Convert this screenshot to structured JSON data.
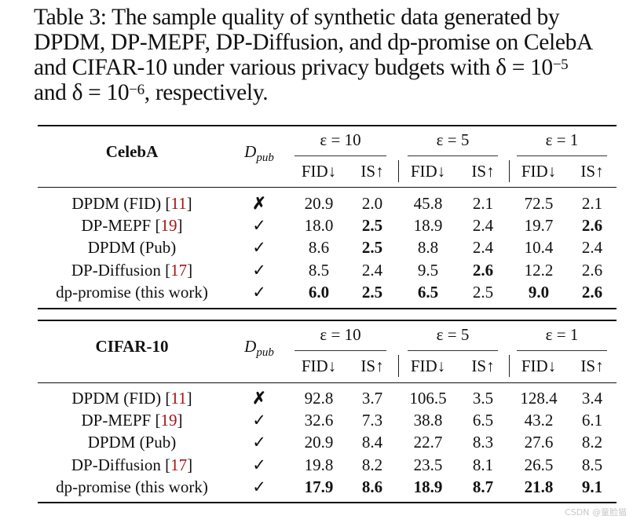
{
  "caption": {
    "line1": "Table 3:  The sample quality of synthetic data generated by",
    "line2": "DPDM, DP-MEPF, DP-Diffusion, and dp-promise on CelebA",
    "line3_prefix": "and CIFAR-10 under various privacy budgets with δ = 10",
    "line3_sup": "−5",
    "line4_prefix": "and δ = 10",
    "line4_sup": "−6",
    "line4_suffix": ", respectively."
  },
  "columns": {
    "dpub_base": "D",
    "dpub_sub": "pub",
    "eps_groups": [
      "ε = 10",
      "ε = 5",
      "ε = 1"
    ],
    "fid": "FID↓",
    "is": "IS↑"
  },
  "tables": [
    {
      "dataset": "CelebA",
      "rows": [
        {
          "method": "DPDM (FID) [",
          "ref": "11",
          "close": "]",
          "dpub": "✗",
          "vals": [
            "20.9",
            "2.0",
            "45.8",
            "2.1",
            "72.5",
            "2.1"
          ],
          "bold": [
            false,
            false,
            false,
            false,
            false,
            false
          ]
        },
        {
          "method": "DP-MEPF [",
          "ref": "19",
          "close": "]",
          "dpub": "✓",
          "vals": [
            "18.0",
            "2.5",
            "18.9",
            "2.4",
            "19.7",
            "2.6"
          ],
          "bold": [
            false,
            true,
            false,
            false,
            false,
            true
          ]
        },
        {
          "method": "DPDM (Pub)",
          "ref": "",
          "close": "",
          "dpub": "✓",
          "vals": [
            "8.6",
            "2.5",
            "8.8",
            "2.4",
            "10.4",
            "2.4"
          ],
          "bold": [
            false,
            true,
            false,
            false,
            false,
            false
          ]
        },
        {
          "method": "DP-Diffusion [",
          "ref": "17",
          "close": "]",
          "dpub": "✓",
          "vals": [
            "8.5",
            "2.4",
            "9.5",
            "2.6",
            "12.2",
            "2.6"
          ],
          "bold": [
            false,
            false,
            false,
            true,
            false,
            false
          ]
        },
        {
          "method": "dp-promise (this work)",
          "ref": "",
          "close": "",
          "dpub": "✓",
          "vals": [
            "6.0",
            "2.5",
            "6.5",
            "2.5",
            "9.0",
            "2.6"
          ],
          "bold": [
            true,
            true,
            true,
            false,
            true,
            true
          ]
        }
      ]
    },
    {
      "dataset": "CIFAR-10",
      "rows": [
        {
          "method": "DPDM (FID) [",
          "ref": "11",
          "close": "]",
          "dpub": "✗",
          "vals": [
            "92.8",
            "3.7",
            "106.5",
            "3.5",
            "128.4",
            "3.4"
          ],
          "bold": [
            false,
            false,
            false,
            false,
            false,
            false
          ]
        },
        {
          "method": "DP-MEPF [",
          "ref": "19",
          "close": "]",
          "dpub": "✓",
          "vals": [
            "32.6",
            "7.3",
            "38.8",
            "6.5",
            "43.2",
            "6.1"
          ],
          "bold": [
            false,
            false,
            false,
            false,
            false,
            false
          ]
        },
        {
          "method": "DPDM (Pub)",
          "ref": "",
          "close": "",
          "dpub": "✓",
          "vals": [
            "20.9",
            "8.4",
            "22.7",
            "8.3",
            "27.6",
            "8.2"
          ],
          "bold": [
            false,
            false,
            false,
            false,
            false,
            false
          ]
        },
        {
          "method": "DP-Diffusion [",
          "ref": "17",
          "close": "]",
          "dpub": "✓",
          "vals": [
            "19.8",
            "8.2",
            "23.5",
            "8.1",
            "26.5",
            "8.5"
          ],
          "bold": [
            false,
            false,
            false,
            false,
            false,
            false
          ]
        },
        {
          "method": "dp-promise (this work)",
          "ref": "",
          "close": "",
          "dpub": "✓",
          "vals": [
            "17.9",
            "8.6",
            "18.9",
            "8.7",
            "21.8",
            "9.1"
          ],
          "bold": [
            true,
            true,
            true,
            true,
            true,
            true
          ]
        }
      ]
    }
  ],
  "watermark": "CSDN @童脸猫"
}
